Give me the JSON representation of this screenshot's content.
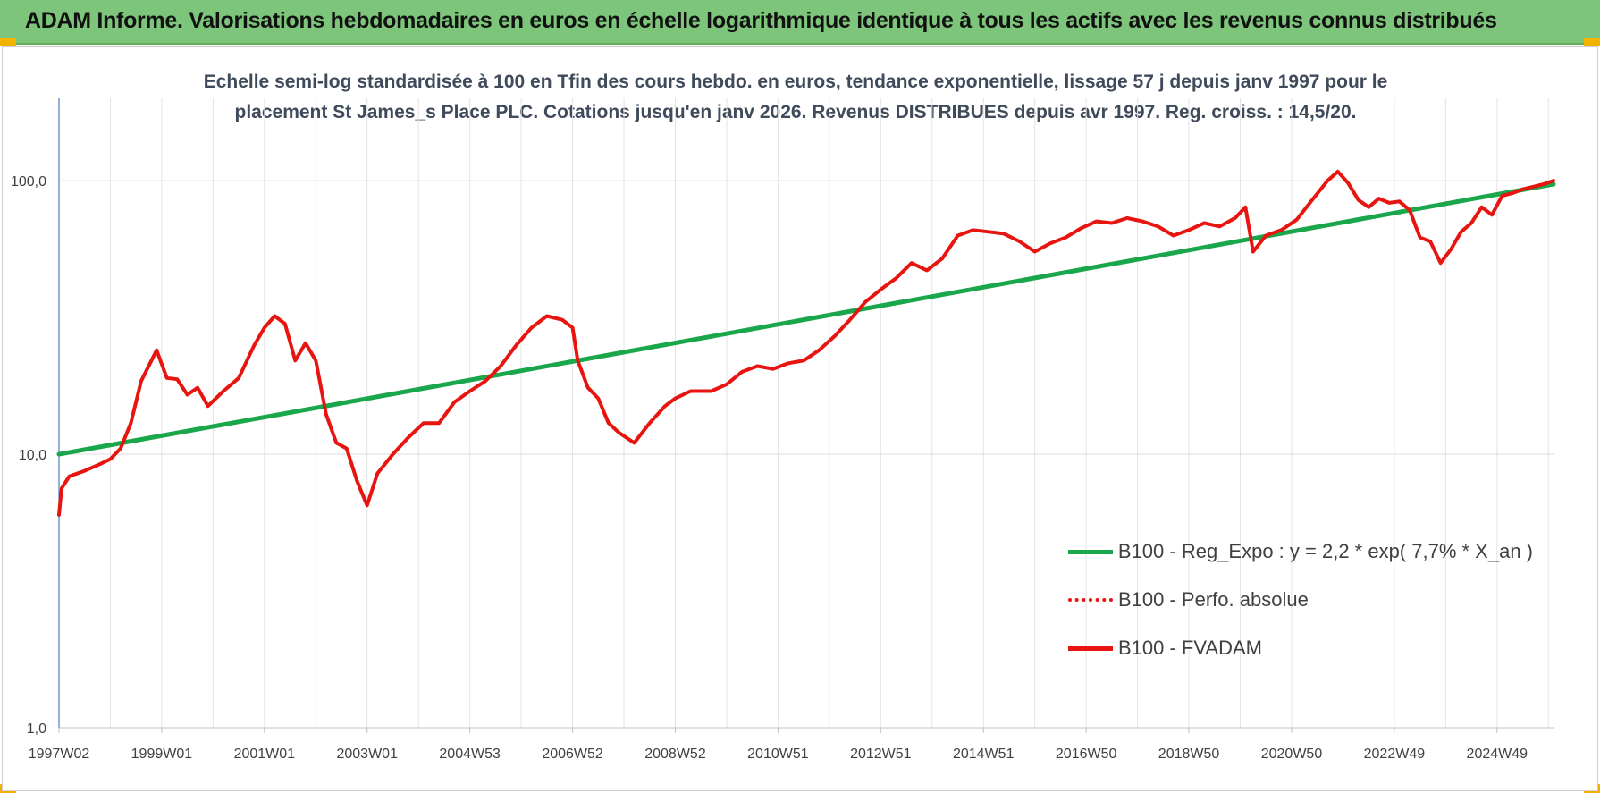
{
  "header": {
    "title": "ADAM Informe. Valorisations hebdomadaires en euros en échelle logarithmique identique à tous les actifs avec les revenus connus distribués"
  },
  "chart_data": {
    "type": "line",
    "title_line1": "Echelle semi-log standardisée à 100 en Tfin des cours hebdo. en euros, tendance exponentielle, lissage 57 j depuis janv 1997 pour le",
    "title_line2": "placement St James_s Place PLC. Cotations jusqu'en janv 2026.  Revenus DISTRIBUES depuis avr 1997. Reg. croiss. : 14,5/20.",
    "y_scale": "log",
    "ylim": [
      1,
      200
    ],
    "xlim": [
      1997.0,
      2026.1
    ],
    "y_ticks": [
      {
        "value": 100,
        "label": "100,0"
      },
      {
        "value": 10,
        "label": "10,0"
      },
      {
        "value": 1,
        "label": "1,0"
      }
    ],
    "x_ticks": [
      {
        "value": 1997.0,
        "label": "1997W02"
      },
      {
        "value": 1999.0,
        "label": "1999W01"
      },
      {
        "value": 2001.0,
        "label": "2001W01"
      },
      {
        "value": 2003.0,
        "label": "2003W01"
      },
      {
        "value": 2005.0,
        "label": "2004W53"
      },
      {
        "value": 2007.0,
        "label": "2006W52"
      },
      {
        "value": 2009.0,
        "label": "2008W52"
      },
      {
        "value": 2011.0,
        "label": "2010W51"
      },
      {
        "value": 2013.0,
        "label": "2012W51"
      },
      {
        "value": 2015.0,
        "label": "2014W51"
      },
      {
        "value": 2017.0,
        "label": "2016W50"
      },
      {
        "value": 2019.0,
        "label": "2018W50"
      },
      {
        "value": 2021.0,
        "label": "2020W50"
      },
      {
        "value": 2023.0,
        "label": "2022W49"
      },
      {
        "value": 2025.0,
        "label": "2024W49"
      }
    ],
    "grid": true,
    "legend_position": "bottom-right",
    "series": [
      {
        "name": "B100 - Reg_Expo : y = 2,2 * exp( 7,7% *  X_an )",
        "color": "#1aa64a",
        "style": "solid",
        "x": [
          1997.0,
          2026.1
        ],
        "y": [
          10.0,
          97.0
        ]
      },
      {
        "name": "B100 - Perfo. absolue",
        "color": "#e8140f",
        "style": "dotted",
        "x": [],
        "y": []
      },
      {
        "name": "B100 - FVADAM",
        "color": "#e8140f",
        "style": "solid",
        "x": [
          1997.0,
          1997.05,
          1997.2,
          1997.5,
          1997.8,
          1998.0,
          1998.2,
          1998.4,
          1998.6,
          1998.9,
          1999.1,
          1999.3,
          1999.5,
          1999.7,
          1999.9,
          2000.2,
          2000.5,
          2000.8,
          2001.0,
          2001.2,
          2001.4,
          2001.6,
          2001.8,
          2002.0,
          2002.2,
          2002.4,
          2002.6,
          2002.8,
          2003.0,
          2003.2,
          2003.5,
          2003.8,
          2004.1,
          2004.4,
          2004.7,
          2005.0,
          2005.3,
          2005.6,
          2005.9,
          2006.2,
          2006.5,
          2006.8,
          2007.0,
          2007.1,
          2007.3,
          2007.5,
          2007.7,
          2007.9,
          2008.2,
          2008.5,
          2008.8,
          2009.0,
          2009.3,
          2009.7,
          2010.0,
          2010.3,
          2010.6,
          2010.9,
          2011.2,
          2011.5,
          2011.8,
          2012.1,
          2012.4,
          2012.7,
          2013.0,
          2013.3,
          2013.6,
          2013.9,
          2014.2,
          2014.5,
          2014.8,
          2015.1,
          2015.4,
          2015.7,
          2016.0,
          2016.3,
          2016.6,
          2016.9,
          2017.2,
          2017.5,
          2017.8,
          2018.1,
          2018.4,
          2018.7,
          2019.0,
          2019.3,
          2019.6,
          2019.9,
          2020.1,
          2020.25,
          2020.5,
          2020.8,
          2021.1,
          2021.4,
          2021.7,
          2021.9,
          2022.1,
          2022.3,
          2022.5,
          2022.7,
          2022.9,
          2023.1,
          2023.3,
          2023.5,
          2023.7,
          2023.9,
          2024.1,
          2024.3,
          2024.5,
          2024.7,
          2024.9,
          2025.1,
          2025.3,
          2025.5,
          2025.7,
          2025.9,
          2026.1
        ],
        "y": [
          6.0,
          7.5,
          8.3,
          8.7,
          9.2,
          9.6,
          10.5,
          13.0,
          18.5,
          24.0,
          19.0,
          18.8,
          16.5,
          17.5,
          15.0,
          17.0,
          19.0,
          25.0,
          29.0,
          32.0,
          30.0,
          22.0,
          25.5,
          22.0,
          14.0,
          11.0,
          10.5,
          8.0,
          6.5,
          8.5,
          10.0,
          11.5,
          13.0,
          13.0,
          15.5,
          17.0,
          18.5,
          21.0,
          25.0,
          29.0,
          32.0,
          31.0,
          29.0,
          22.0,
          17.5,
          16.0,
          13.0,
          12.0,
          11.0,
          13.0,
          15.0,
          16.0,
          17.0,
          17.0,
          18.0,
          20.0,
          21.0,
          20.5,
          21.5,
          22.0,
          24.0,
          27.0,
          31.0,
          36.0,
          40.0,
          44.0,
          50.0,
          47.0,
          52.0,
          63.0,
          66.0,
          65.0,
          64.0,
          60.0,
          55.0,
          59.0,
          62.0,
          67.0,
          71.0,
          70.0,
          73.0,
          71.0,
          68.0,
          63.0,
          66.0,
          70.0,
          68.0,
          73.0,
          80.0,
          55.0,
          63.0,
          66.0,
          72.0,
          85.0,
          100.0,
          108.0,
          98.0,
          85.0,
          80.0,
          86.0,
          83.0,
          84.0,
          78.0,
          62.0,
          60.0,
          50.0,
          56.0,
          65.0,
          70.0,
          80.0,
          75.0,
          88.0,
          90.0,
          93.0,
          95.0,
          97.0,
          100.0
        ]
      }
    ]
  }
}
